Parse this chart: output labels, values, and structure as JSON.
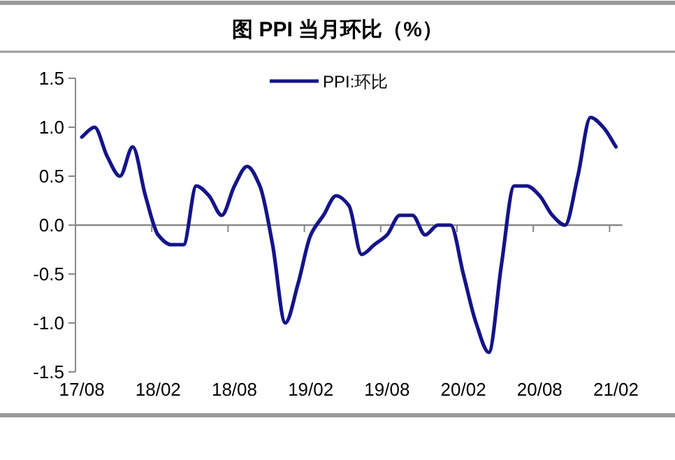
{
  "chart_data": {
    "type": "line",
    "title": "图  PPI 当月环比（%）",
    "categories": [
      "17/08",
      null,
      null,
      null,
      null,
      null,
      "18/02",
      null,
      null,
      null,
      null,
      null,
      "18/08",
      null,
      null,
      null,
      null,
      null,
      "19/02",
      null,
      null,
      null,
      null,
      null,
      "19/08",
      null,
      null,
      null,
      null,
      null,
      "20/02",
      null,
      null,
      null,
      null,
      null,
      "20/08",
      null,
      null,
      null,
      null,
      null,
      "21/02"
    ],
    "series": [
      {
        "name": "PPI:环比",
        "color": "#14148a",
        "values": [
          0.9,
          1.0,
          0.7,
          0.5,
          0.8,
          0.3,
          -0.1,
          -0.2,
          -0.2,
          0.4,
          0.3,
          0.1,
          0.4,
          0.6,
          0.4,
          -0.2,
          -1.0,
          -0.6,
          -0.1,
          0.1,
          0.3,
          0.2,
          -0.3,
          -0.2,
          -0.1,
          0.1,
          0.1,
          -0.1,
          0.0,
          0.0,
          -0.5,
          -1.0,
          -1.3,
          -0.4,
          0.4,
          0.4,
          0.3,
          0.1,
          0.0,
          0.5,
          1.1,
          1.0,
          0.8
        ]
      }
    ],
    "ylim": [
      -1.5,
      1.5
    ],
    "yticks": [
      1.5,
      {
        "value": 1.0,
        "label": "1.0"
      },
      0.5,
      {
        "value": 0.0,
        "label": "0.0"
      },
      -0.5,
      {
        "value": -1.0,
        "label": "-1.0"
      },
      -1.5
    ],
    "legend": "top",
    "marker": "none",
    "line_style": "solid"
  }
}
